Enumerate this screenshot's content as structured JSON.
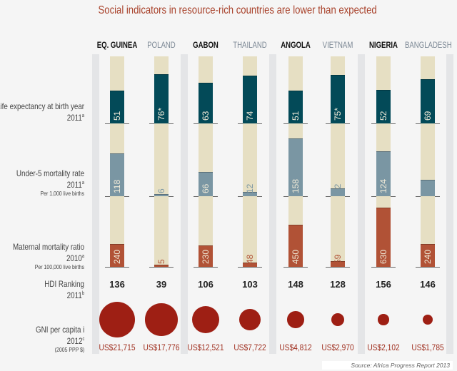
{
  "chart_data": {
    "type": "bar",
    "title": "Social indicators in resource-rich countries are lower than expected",
    "countries": [
      {
        "name": "EQ. GUINEA",
        "resource_rich": true,
        "life": "51",
        "u5": "118",
        "mat": "240",
        "hdi": "136",
        "gni": "US$21,715",
        "gni_value": 21715
      },
      {
        "name": "POLAND",
        "resource_rich": false,
        "life": "76*",
        "u5": "6",
        "mat": "5",
        "hdi": "39",
        "gni": "US$17,776",
        "gni_value": 17776
      },
      {
        "name": "GABON",
        "resource_rich": true,
        "life": "63",
        "u5": "66",
        "mat": "230",
        "hdi": "106",
        "gni": "US$12,521",
        "gni_value": 12521
      },
      {
        "name": "THAILAND",
        "resource_rich": false,
        "life": "74",
        "u5": "12",
        "mat": "48",
        "hdi": "103",
        "gni": "US$7,722",
        "gni_value": 7722
      },
      {
        "name": "ANGOLA",
        "resource_rich": true,
        "life": "51",
        "u5": "158",
        "mat": "450",
        "hdi": "148",
        "gni": "US$4,812",
        "gni_value": 4812
      },
      {
        "name": "VIETNAM",
        "resource_rich": false,
        "life": "75*",
        "u5": "22",
        "mat": "59",
        "hdi": "128",
        "gni": "US$2,970",
        "gni_value": 2970
      },
      {
        "name": "NIGERIA",
        "resource_rich": true,
        "life": "52",
        "u5": "124",
        "mat": "630",
        "hdi": "156",
        "gni": "US$2,102",
        "gni_value": 2102
      },
      {
        "name": "BANGLADESH",
        "resource_rich": false,
        "life": "69",
        "u5": "46",
        "mat": "240",
        "hdi": "146",
        "gni": "US$1,785",
        "gni_value": 1785
      }
    ],
    "rows": {
      "life": {
        "label": "Life expectancy at birth year",
        "year": "2011",
        "note": "a",
        "color": "#034a58"
      },
      "u5": {
        "label": "Under-5 mortality rate",
        "year": "2011",
        "note": "a",
        "sub": "Per 1,000 live births",
        "color": "#7a96a3"
      },
      "mat": {
        "label": "Maternal mortality ratio",
        "year": "2010",
        "note": "a",
        "sub": "Per 100,000 live births",
        "color": "#b15236"
      },
      "hdi": {
        "label": "HDI Ranking",
        "year": "2011",
        "note": "b"
      },
      "gni": {
        "label": "GNI per capita i",
        "year": "2012",
        "note": "c",
        "sub": "(2005 PPP $)",
        "color": "#9e1f14"
      }
    },
    "track_color": "#e6dfc3",
    "source": "Source: Africa Progress Report 2013"
  }
}
